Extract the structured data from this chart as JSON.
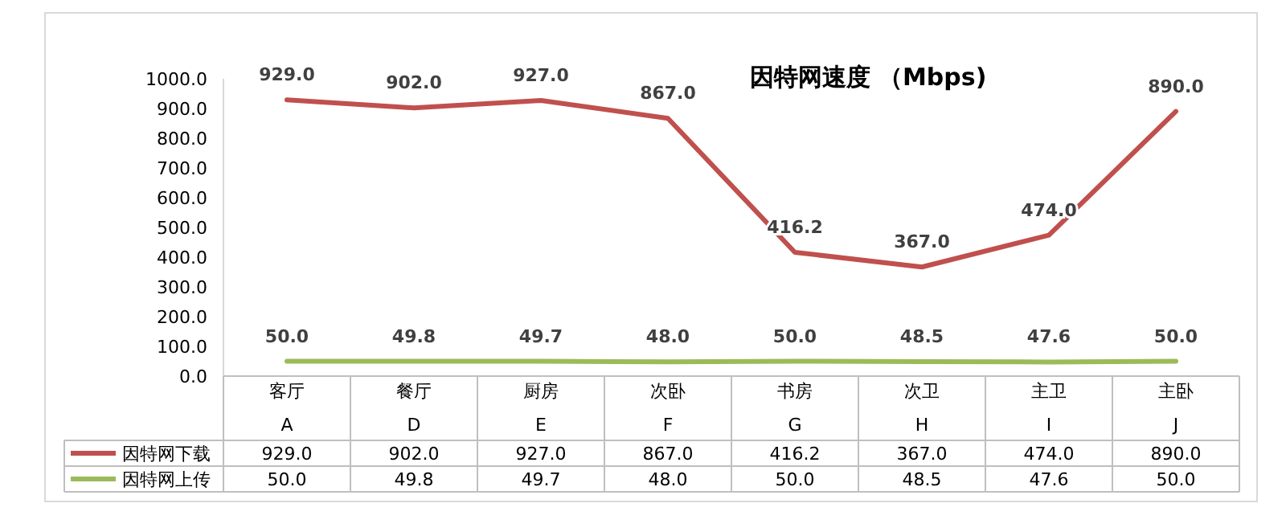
{
  "chart_data": {
    "type": "line",
    "title": "因特网速度 （Mbps)",
    "categories": [
      "客厅\nA",
      "餐厅\nD",
      "厨房\nE",
      "次卧\nF",
      "书房\nG",
      "次卫\nH",
      "主卫\nI",
      "主卧\nJ"
    ],
    "series": [
      {
        "name": "因特网下载",
        "color": "#c0504d",
        "values": [
          929.0,
          902.0,
          927.0,
          867.0,
          416.2,
          367.0,
          474.0,
          890.0
        ],
        "value_labels": [
          "929.0",
          "902.0",
          "927.0",
          "867.0",
          "416.2",
          "367.0",
          "474.0",
          "890.0"
        ]
      },
      {
        "name": "因特网上传",
        "color": "#9bbb59",
        "values": [
          50.0,
          49.8,
          49.7,
          48.0,
          50.0,
          48.5,
          47.6,
          50.0
        ],
        "value_labels": [
          "50.0",
          "49.8",
          "49.7",
          "48.0",
          "50.0",
          "48.5",
          "47.6",
          "50.0"
        ]
      }
    ],
    "ylim": [
      0,
      1000
    ],
    "yticks": [
      {
        "value": 0,
        "label": "0.0"
      },
      {
        "value": 100,
        "label": "100.0"
      },
      {
        "value": 200,
        "label": "200.0"
      },
      {
        "value": 300,
        "label": "300.0"
      },
      {
        "value": 400,
        "label": "400.0"
      },
      {
        "value": 500,
        "label": "500.0"
      },
      {
        "value": 600,
        "label": "600.0"
      },
      {
        "value": 700,
        "label": "700.0"
      },
      {
        "value": 800,
        "label": "800.0"
      },
      {
        "value": 900,
        "label": "900.0"
      },
      {
        "value": 1000,
        "label": "1000.0"
      }
    ],
    "legend": "bottom",
    "grid": false,
    "marker": "none",
    "line_style": "solid"
  }
}
